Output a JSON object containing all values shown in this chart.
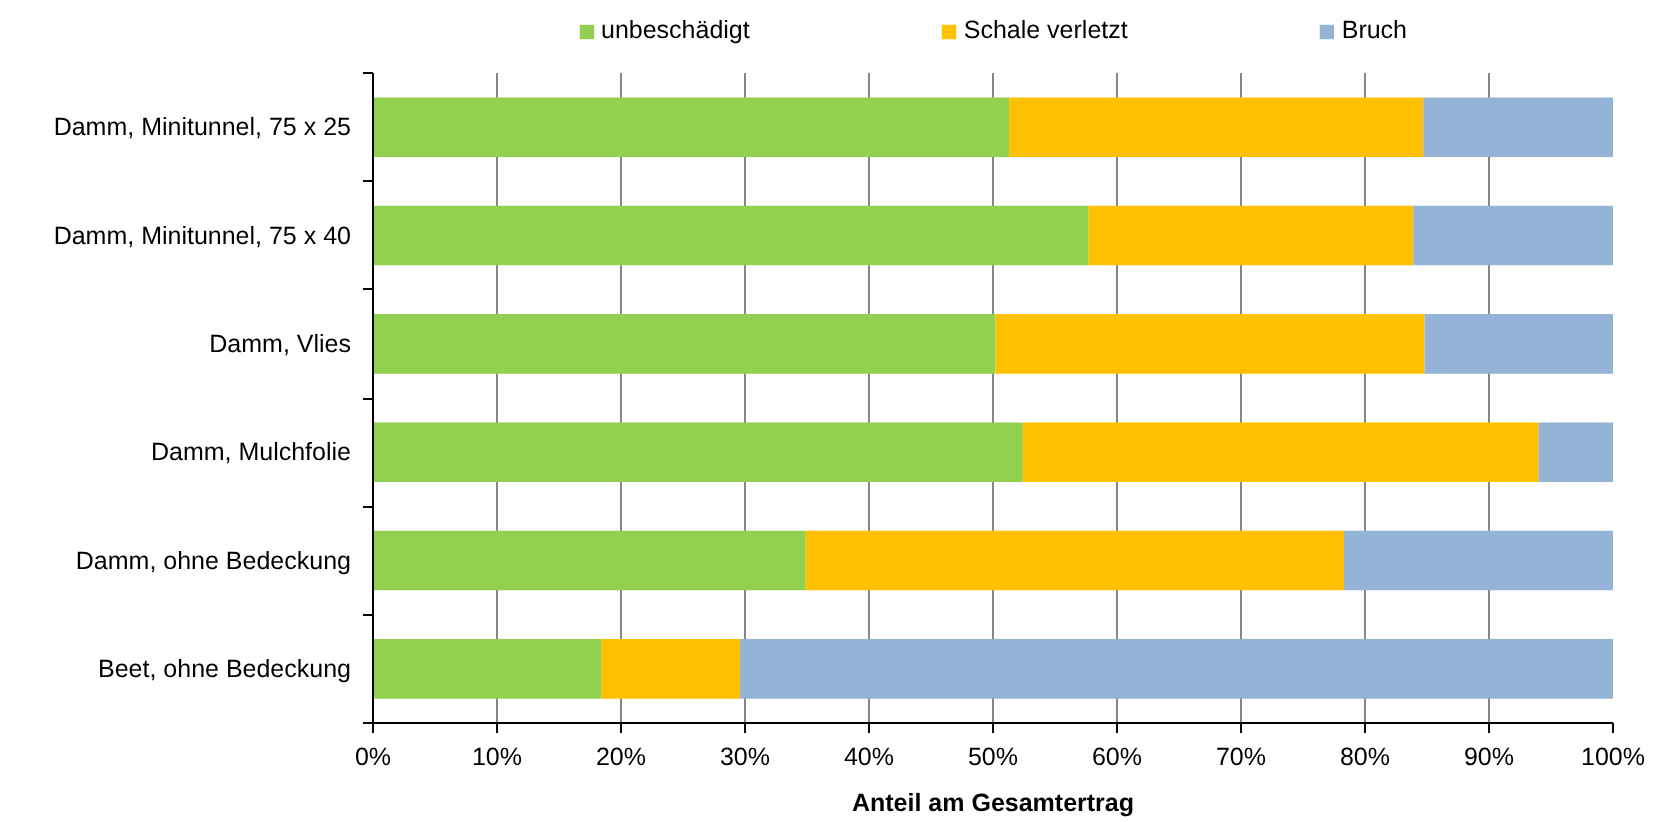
{
  "chart_data": {
    "type": "bar",
    "orientation": "horizontal",
    "stacked": true,
    "categories": [
      "Damm, Minitunnel, 75 x 25",
      "Damm, Minitunnel, 75 x 40",
      "Damm, Vlies",
      "Damm, Mulchfolie",
      "Damm, ohne Bedeckung",
      "Beet, ohne Bedeckung"
    ],
    "series": [
      {
        "name": "unbeschädigt",
        "color": "#92d050",
        "values": [
          51.3,
          57.7,
          50.2,
          52.4,
          34.9,
          18.4
        ]
      },
      {
        "name": "Schale verletzt",
        "color": "#ffc000",
        "values": [
          33.4,
          26.2,
          34.6,
          41.6,
          43.4,
          11.2
        ]
      },
      {
        "name": "Bruch",
        "color": "#95b3d7",
        "values": [
          15.3,
          16.1,
          15.2,
          6.0,
          21.7,
          70.4
        ]
      }
    ],
    "xlim": [
      0,
      100
    ],
    "xticks": [
      {
        "value": 0,
        "label": "0%"
      },
      {
        "value": 10,
        "label": "10%"
      },
      {
        "value": 20,
        "label": "20%"
      },
      {
        "value": 30,
        "label": "30%"
      },
      {
        "value": 40,
        "label": "40%"
      },
      {
        "value": 50,
        "label": "50%"
      },
      {
        "value": 60,
        "label": "60%"
      },
      {
        "value": 70,
        "label": "70%"
      },
      {
        "value": 80,
        "label": "80%"
      },
      {
        "value": 90,
        "label": "90%"
      },
      {
        "value": 100,
        "label": "100%"
      }
    ],
    "xlabel": "Anteil am Gesamtertrag",
    "grid": "x",
    "legend": "top"
  }
}
